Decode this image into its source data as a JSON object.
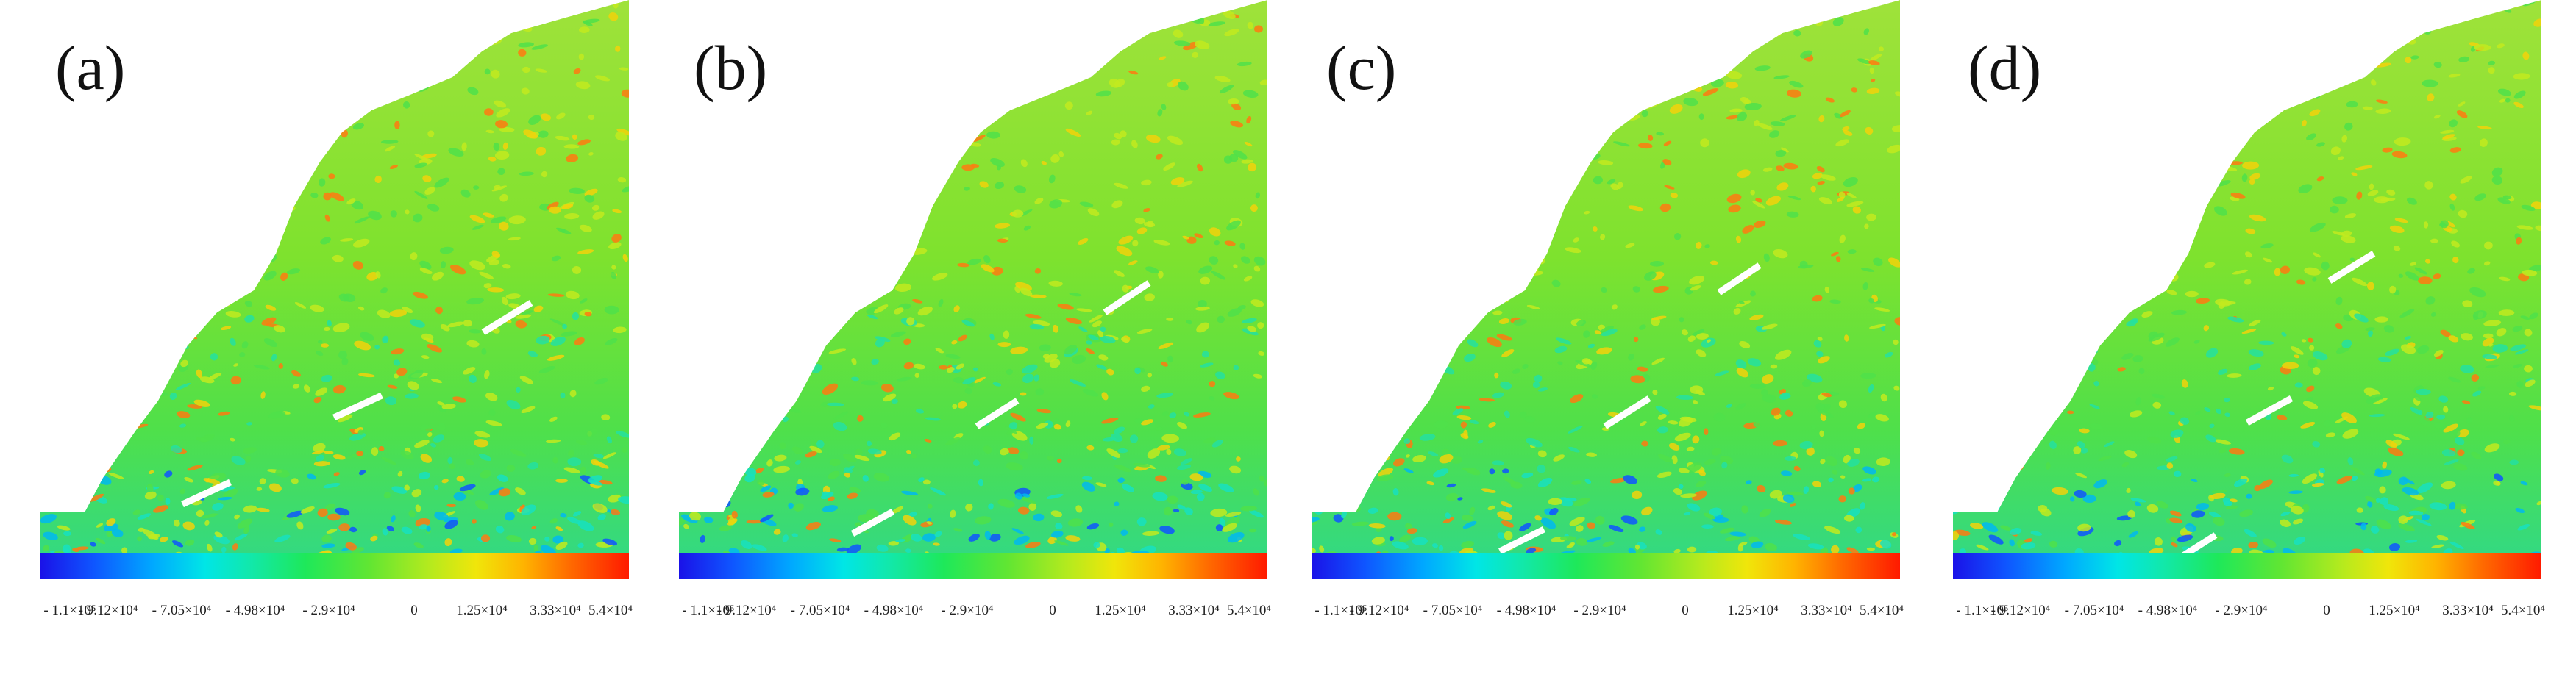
{
  "panels": [
    {
      "label": "(a)",
      "cracks": [
        [
          248,
          686,
          313,
          656
        ],
        [
          454,
          568,
          519,
          538
        ],
        [
          657,
          452,
          722,
          412
        ]
      ]
    },
    {
      "label": "(b)",
      "cracks": [
        [
          1159,
          726,
          1214,
          696
        ],
        [
          1328,
          580,
          1383,
          545
        ],
        [
          1502,
          425,
          1562,
          385
        ]
      ]
    },
    {
      "label": "(c)",
      "cracks": [
        [
          2039,
          750,
          2099,
          720
        ],
        [
          2182,
          580,
          2242,
          542
        ],
        [
          2337,
          398,
          2392,
          361
        ]
      ]
    },
    {
      "label": "(d)",
      "cracks": [
        [
          2952,
          766,
          3012,
          728
        ],
        [
          3055,
          575,
          3115,
          542
        ],
        [
          3167,
          382,
          3227,
          345
        ]
      ]
    }
  ],
  "colorbar": {
    "ticks": [
      "- 1.1×10⁵",
      "- 9.12×10⁴",
      "- 7.05×10⁴",
      "- 4.98×10⁴",
      "- 2.9×10⁴",
      "0",
      "1.25×10⁴",
      "3.33×10⁴",
      "5.4×10⁴"
    ],
    "tick_values": [
      -110000,
      -91200,
      -70500,
      -49800,
      -29000,
      0,
      12500,
      33300,
      54000
    ],
    "colors": [
      "#1a12e8",
      "#0f55ff",
      "#00a8ff",
      "#00e6e6",
      "#12e8a8",
      "#1ee85a",
      "#62e632",
      "#b4ea1e",
      "#f0e60a",
      "#ffb400",
      "#ff6a00",
      "#ff1a00"
    ]
  },
  "chart_data": {
    "type": "heatmap",
    "panel_labels": [
      "(a)",
      "(b)",
      "(c)",
      "(d)"
    ],
    "colorbar_min": -110000,
    "colorbar_max": 54000,
    "colorbar_tick_labels": [
      "- 1.1×10⁵",
      "- 9.12×10⁴",
      "- 7.05×10⁴",
      "- 4.98×10⁴",
      "- 2.9×10⁴",
      "0",
      "1.25×10⁴",
      "3.33×10⁴",
      "5.4×10⁴"
    ],
    "colorbar_tick_values": [
      -110000,
      -91200,
      -70500,
      -49800,
      -29000,
      0,
      12500,
      33300,
      54000
    ],
    "xlabel": "",
    "ylabel": "",
    "title": ""
  }
}
